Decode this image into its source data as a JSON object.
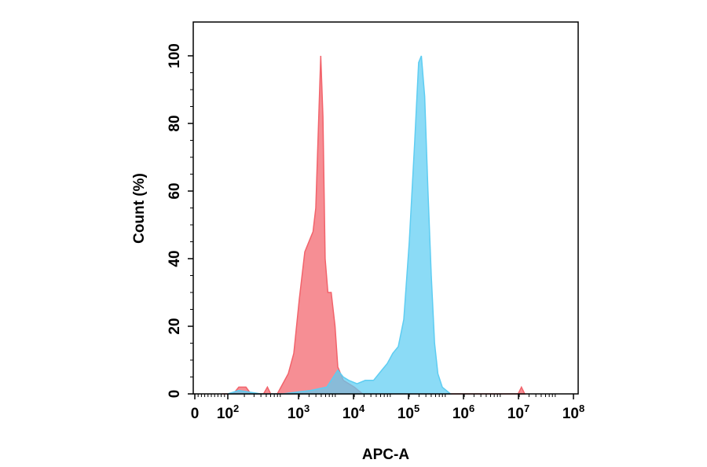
{
  "chart_data": {
    "type": "area",
    "title": "",
    "xlabel": "APC-A",
    "ylabel": "Count  (%)",
    "x_scale": "biexponential (log above 10^2)",
    "x_ticks": [
      {
        "base": "0",
        "exp": ""
      },
      {
        "base": "10",
        "exp": "2"
      },
      {
        "base": "10",
        "exp": "3"
      },
      {
        "base": "10",
        "exp": "4"
      },
      {
        "base": "10",
        "exp": "5"
      },
      {
        "base": "10",
        "exp": "6"
      },
      {
        "base": "10",
        "exp": "7"
      },
      {
        "base": "10",
        "exp": "8"
      }
    ],
    "y_ticks": [
      "0",
      "20",
      "40",
      "60",
      "80",
      "100"
    ],
    "ylim": [
      0,
      110
    ],
    "grid": false,
    "legend": "none",
    "series": [
      {
        "color": "#f2636b",
        "points": [
          [
            1.65,
            0
          ],
          [
            2.1,
            0
          ],
          [
            2.2,
            2
          ],
          [
            2.33,
            2
          ],
          [
            2.42,
            0
          ],
          [
            2.65,
            0
          ],
          [
            2.72,
            2
          ],
          [
            2.78,
            0
          ],
          [
            2.9,
            0
          ],
          [
            3.0,
            3
          ],
          [
            3.1,
            6
          ],
          [
            3.2,
            12
          ],
          [
            3.3,
            28
          ],
          [
            3.4,
            42
          ],
          [
            3.45,
            44
          ],
          [
            3.5,
            46
          ],
          [
            3.55,
            48
          ],
          [
            3.6,
            55
          ],
          [
            3.65,
            80
          ],
          [
            3.69,
            100
          ],
          [
            3.73,
            82
          ],
          [
            3.77,
            40
          ],
          [
            3.82,
            30
          ],
          [
            3.88,
            30
          ],
          [
            3.95,
            20
          ],
          [
            4.0,
            8
          ],
          [
            4.1,
            4
          ],
          [
            4.3,
            2
          ],
          [
            4.45,
            0
          ],
          [
            7.28,
            0
          ],
          [
            7.34,
            2
          ],
          [
            7.4,
            0
          ]
        ]
      },
      {
        "color": "#5ecdf2",
        "points": [
          [
            2.0,
            0
          ],
          [
            2.2,
            1
          ],
          [
            2.6,
            0
          ],
          [
            3.0,
            0
          ],
          [
            3.5,
            1
          ],
          [
            3.8,
            2
          ],
          [
            4.0,
            7
          ],
          [
            4.1,
            5
          ],
          [
            4.2,
            4
          ],
          [
            4.35,
            3
          ],
          [
            4.5,
            4
          ],
          [
            4.65,
            4
          ],
          [
            4.8,
            7
          ],
          [
            4.9,
            9
          ],
          [
            5.0,
            12
          ],
          [
            5.1,
            14
          ],
          [
            5.2,
            22
          ],
          [
            5.3,
            45
          ],
          [
            5.4,
            75
          ],
          [
            5.47,
            98
          ],
          [
            5.52,
            100
          ],
          [
            5.58,
            88
          ],
          [
            5.64,
            60
          ],
          [
            5.7,
            35
          ],
          [
            5.76,
            15
          ],
          [
            5.82,
            6
          ],
          [
            5.9,
            2
          ],
          [
            6.05,
            0
          ]
        ]
      }
    ]
  }
}
